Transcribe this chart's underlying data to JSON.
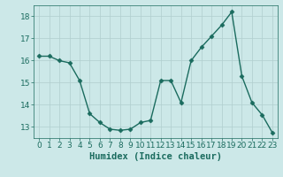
{
  "x": [
    0,
    1,
    2,
    3,
    4,
    5,
    6,
    7,
    8,
    9,
    10,
    11,
    12,
    13,
    14,
    15,
    16,
    17,
    18,
    19,
    20,
    21,
    22,
    23
  ],
  "y": [
    16.2,
    16.2,
    16.0,
    15.9,
    15.1,
    13.6,
    13.2,
    12.9,
    12.85,
    12.9,
    13.2,
    13.3,
    15.1,
    15.1,
    14.1,
    16.0,
    16.6,
    17.1,
    17.6,
    18.2,
    15.3,
    14.1,
    13.55,
    12.75
  ],
  "line_color": "#1a6b5e",
  "marker": "D",
  "marker_size": 2.5,
  "bg_color": "#cce8e8",
  "grid_color": "#b0cece",
  "xlabel": "Humidex (Indice chaleur)",
  "ylabel": "",
  "xlim": [
    -0.5,
    23.5
  ],
  "ylim": [
    12.5,
    18.5
  ],
  "yticks": [
    13,
    14,
    15,
    16,
    17,
    18
  ],
  "xticks": [
    0,
    1,
    2,
    3,
    4,
    5,
    6,
    7,
    8,
    9,
    10,
    11,
    12,
    13,
    14,
    15,
    16,
    17,
    18,
    19,
    20,
    21,
    22,
    23
  ],
  "tick_fontsize": 6.5,
  "label_fontsize": 7.5,
  "line_width": 1.0
}
